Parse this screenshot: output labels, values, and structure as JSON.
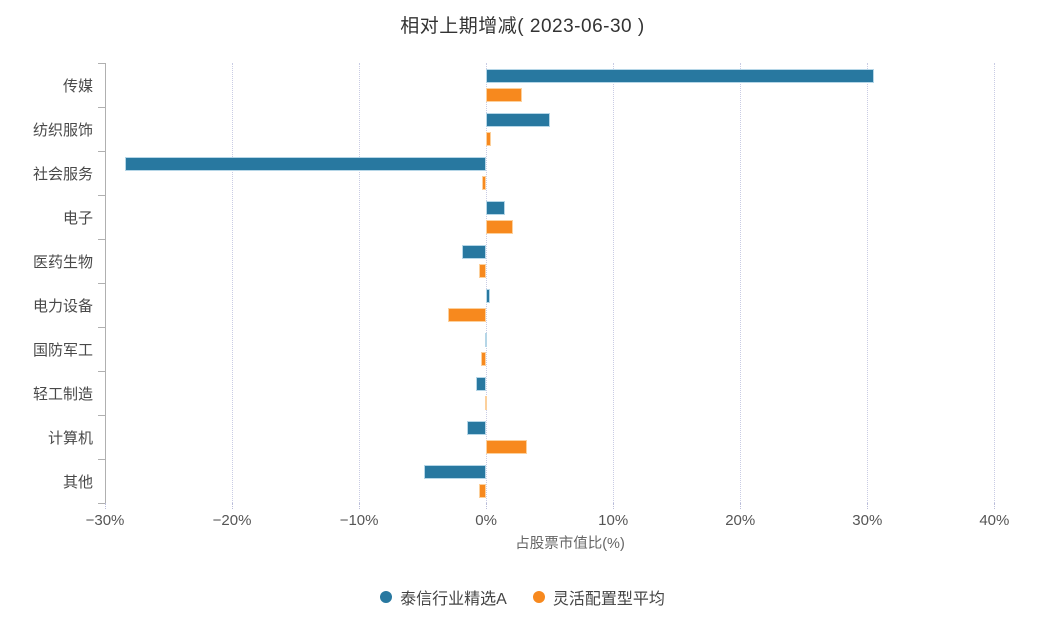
{
  "chart_data": {
    "type": "bar",
    "orientation": "horizontal",
    "title": "相对上期增减( 2023-06-30 )",
    "xlabel": "占股票市值比(%)",
    "categories": [
      "传媒",
      "纺织服饰",
      "社会服务",
      "电子",
      "医药生物",
      "电力设备",
      "国防军工",
      "轻工制造",
      "计算机",
      "其他"
    ],
    "series": [
      {
        "name": "泰信行业精选A",
        "color": "#2878A0",
        "values": [
          30.5,
          5.0,
          -28.4,
          1.5,
          -1.9,
          0.3,
          -0.1,
          -0.8,
          -1.5,
          -4.9
        ]
      },
      {
        "name": "灵活配置型平均",
        "color": "#F7891E",
        "values": [
          2.8,
          0.4,
          -0.3,
          2.1,
          -0.6,
          -3.0,
          -0.4,
          -0.1,
          3.2,
          -0.6
        ]
      }
    ],
    "x_ticks": [
      {
        "label": "−30%",
        "value": -30
      },
      {
        "label": "−20%",
        "value": -20
      },
      {
        "label": "−10%",
        "value": -10
      },
      {
        "label": "0%",
        "value": 0
      },
      {
        "label": "10%",
        "value": 10
      },
      {
        "label": "20%",
        "value": 20
      },
      {
        "label": "30%",
        "value": 30
      },
      {
        "label": "40%",
        "value": 40
      }
    ],
    "xlim": [
      -30,
      43.2
    ],
    "grid": "vertical-dotted",
    "legend_position": "bottom"
  }
}
